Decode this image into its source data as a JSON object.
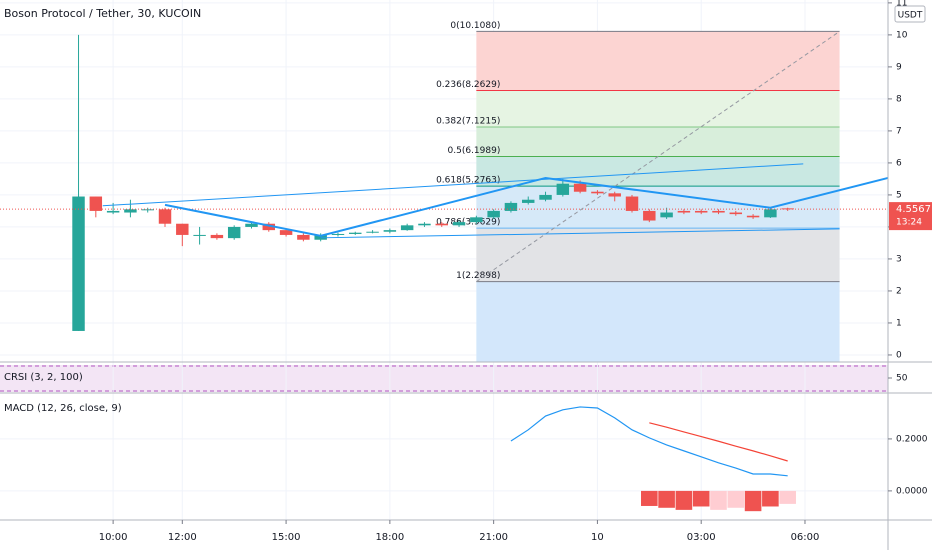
{
  "header": {
    "title": "Boson Protocol / Tether, 30, KUCOIN"
  },
  "chart_data": {
    "type": "candlestick",
    "x": [
      9,
      9.5,
      10,
      10.5,
      11,
      11.5,
      12,
      12.5,
      13,
      13.5,
      14,
      14.5,
      15,
      15.5,
      16,
      16.5,
      17,
      17.5,
      18,
      18.5,
      19,
      19.5,
      20,
      20.5,
      21,
      21.5,
      22,
      22.5,
      23,
      23.5,
      24,
      24.5,
      25,
      25.5,
      26,
      26.5,
      27,
      27.5,
      28,
      28.5,
      29,
      29.5
    ],
    "open": [
      0.75,
      4.95,
      4.45,
      4.45,
      4.55,
      4.55,
      4.1,
      3.75,
      3.75,
      3.65,
      4.0,
      4.1,
      3.9,
      3.75,
      3.6,
      3.75,
      3.78,
      3.82,
      3.85,
      3.9,
      4.05,
      4.1,
      4.05,
      4.15,
      4.3,
      4.5,
      4.75,
      4.85,
      5.0,
      5.35,
      5.1,
      5.05,
      4.95,
      4.5,
      4.3,
      4.5,
      4.5,
      4.5,
      4.45,
      4.35,
      4.3,
      4.58
    ],
    "high": [
      10.0,
      4.95,
      4.75,
      4.85,
      4.6,
      4.6,
      4.1,
      4.0,
      3.8,
      4.05,
      4.15,
      4.15,
      3.95,
      3.8,
      3.8,
      3.82,
      3.85,
      3.9,
      3.95,
      4.1,
      4.15,
      4.15,
      4.2,
      4.35,
      4.55,
      4.8,
      4.95,
      5.1,
      5.5,
      5.45,
      5.15,
      5.1,
      5.0,
      4.55,
      4.6,
      4.55,
      4.55,
      4.55,
      4.5,
      4.4,
      4.6,
      4.6
    ],
    "low": [
      0.75,
      4.3,
      4.4,
      4.3,
      4.45,
      4.0,
      3.4,
      3.45,
      3.6,
      3.6,
      3.95,
      3.85,
      3.7,
      3.55,
      3.55,
      3.7,
      3.75,
      3.8,
      3.8,
      3.88,
      4.0,
      4.0,
      4.0,
      4.1,
      4.25,
      4.45,
      4.7,
      4.8,
      4.95,
      5.05,
      5.0,
      4.8,
      4.45,
      4.15,
      4.25,
      4.4,
      4.4,
      4.4,
      4.35,
      4.25,
      4.28,
      4.5
    ],
    "close": [
      4.95,
      4.5,
      4.5,
      4.55,
      4.55,
      4.1,
      3.75,
      3.75,
      3.65,
      4.0,
      4.1,
      3.9,
      3.75,
      3.6,
      3.75,
      3.78,
      3.82,
      3.85,
      3.9,
      4.05,
      4.1,
      4.05,
      4.15,
      4.3,
      4.5,
      4.75,
      4.85,
      5.0,
      5.35,
      5.1,
      5.05,
      4.95,
      4.5,
      4.2,
      4.45,
      4.45,
      4.45,
      4.45,
      4.4,
      4.3,
      4.55,
      4.5567
    ],
    "up_color": "#26a69a",
    "down_color": "#ef5350",
    "xlim": [
      6.73,
      32.4
    ],
    "xticks": [
      {
        "value": 10,
        "label": "10:00"
      },
      {
        "value": 12,
        "label": "12:00"
      },
      {
        "value": 15,
        "label": "15:00"
      },
      {
        "value": 18,
        "label": "18:00"
      },
      {
        "value": 21,
        "label": "21:00"
      },
      {
        "value": 24,
        "label": "10"
      },
      {
        "value": 27,
        "label": "03:00"
      },
      {
        "value": 30,
        "label": "06:00"
      }
    ],
    "ylim": [
      -0.22,
      11.09
    ],
    "yticks": [
      0,
      1,
      2,
      3,
      4,
      5,
      6,
      7,
      8,
      9,
      10,
      11
    ],
    "y_unit": "USDT",
    "grid": true,
    "last_price": 4.5567,
    "countdown": "13:24",
    "fib": {
      "x": [
        20.5,
        31
      ],
      "levels": [
        {
          "price": 10.108,
          "label": "0(10.1080)",
          "color": "#787b86",
          "fill": "#fcd4d2"
        },
        {
          "price": 8.2629,
          "label": "0.236(8.2629)",
          "color": "#f23645",
          "fill": "#e6f4e3"
        },
        {
          "price": 7.1215,
          "label": "0.382(7.1215)",
          "color": "#81c784",
          "fill": "#d8eedb"
        },
        {
          "price": 6.1989,
          "label": "0.5(6.1989)",
          "color": "#4caf50",
          "fill": "#c9e8e2"
        },
        {
          "price": 5.2763,
          "label": "0.618(5.2763)",
          "color": "#089981",
          "fill": "#d6e9f8"
        },
        {
          "price": 3.9629,
          "label": "0.786(3.9629)",
          "color": "#64b5f6",
          "fill": "#e2e3e6"
        },
        {
          "price": 2.2898,
          "label": "1(2.2898)",
          "color": "#787b86",
          "fill": "#d3e7fb"
        }
      ]
    },
    "trend_line": {
      "x": [
        20.5,
        31
      ],
      "y": [
        2.2898,
        10.108
      ],
      "color": "#9598a1"
    },
    "pattern": {
      "x": [
        11.5,
        16,
        22.5,
        29,
        32.4
      ],
      "y": [
        4.69,
        3.72,
        5.53,
        4.6,
        5.53
      ],
      "color": "#2196f3"
    },
    "channel": [
      {
        "x": [
          9.7,
          29.95
        ],
        "y": [
          4.66,
          5.97
        ]
      },
      {
        "x": [
          16,
          31
        ],
        "y": [
          3.66,
          3.94
        ]
      }
    ]
  },
  "crsi": {
    "title": "CRSI (3, 2, 100)",
    "ylim": [
      0,
      100
    ],
    "yticks": [
      50
    ]
  },
  "macd": {
    "title": "MACD (12, 26, close, 9)",
    "ylim": [
      -0.112,
      0.369
    ],
    "yticks": [
      {
        "value": 0.2,
        "label": "0.2000"
      },
      {
        "value": 0,
        "label": "0.0000"
      }
    ],
    "x": [
      21.5,
      22,
      22.5,
      23,
      23.5,
      24,
      24.5,
      25,
      25.5,
      26,
      26.5,
      27,
      27.5,
      28,
      28.5,
      29,
      29.5
    ],
    "macd": [
      0.192,
      0.235,
      0.288,
      0.312,
      0.323,
      0.319,
      0.281,
      0.235,
      0.204,
      0.177,
      0.154,
      0.131,
      0.108,
      0.088,
      0.065,
      0.065,
      0.058
    ],
    "macd_color": "#2196f3",
    "signal_x": [
      25.5,
      26,
      26.5,
      27,
      27.5,
      28,
      28.5,
      29,
      29.5
    ],
    "signal": [
      0.262,
      0.245,
      0.227,
      0.209,
      0.191,
      0.172,
      0.154,
      0.135,
      0.115
    ],
    "signal_color": "#f44336",
    "hist": [
      -0.058,
      -0.065,
      -0.073,
      -0.06,
      -0.073,
      -0.065,
      -0.078,
      -0.06,
      -0.05
    ],
    "hist_colors": [
      "#ef5350",
      "#ef5350",
      "#ef5350",
      "#ef5350",
      "#ffcdd2",
      "#ffcdd2",
      "#ef5350",
      "#ef5350",
      "#ffcdd2"
    ]
  }
}
